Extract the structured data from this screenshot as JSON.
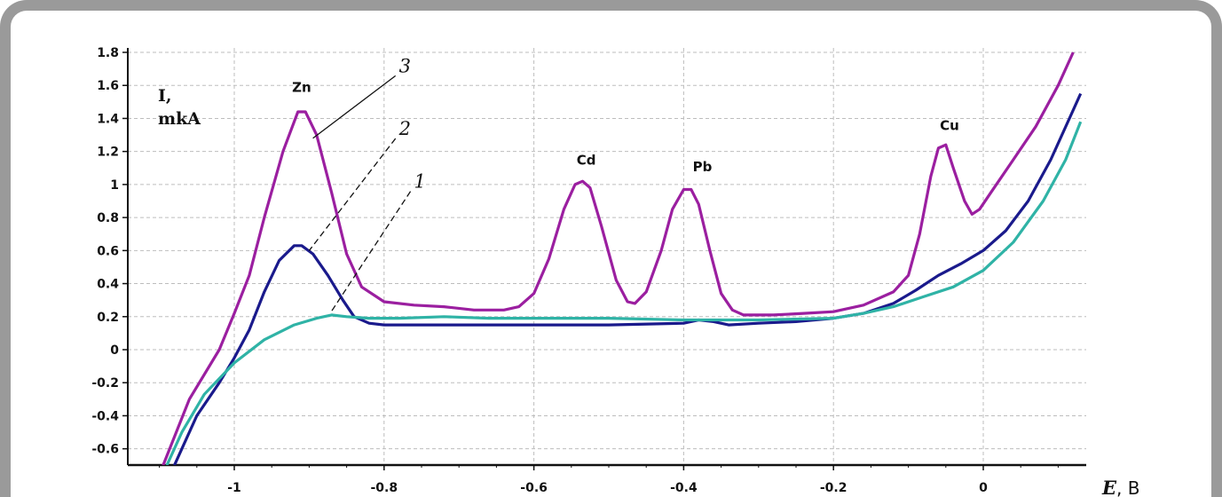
{
  "chart_data": {
    "type": "line",
    "ylabel_line1": "I,",
    "ylabel_line2": "mkA",
    "xlabel_symbol": "E",
    "xlabel_unit": ", B",
    "xlim": [
      -1.12,
      0.14
    ],
    "ylim": [
      -0.7,
      1.85
    ],
    "grid": true,
    "x_ticks": [
      {
        "v": -1.0,
        "label": "-1"
      },
      {
        "v": -0.8,
        "label": "-0.8"
      },
      {
        "v": -0.6,
        "label": "-0.6"
      },
      {
        "v": -0.4,
        "label": "-0.4"
      },
      {
        "v": -0.2,
        "label": "-0.2"
      },
      {
        "v": 0.0,
        "label": "0"
      }
    ],
    "y_ticks": [
      {
        "v": 1.8,
        "label": "1.8"
      },
      {
        "v": 1.6,
        "label": "1.6"
      },
      {
        "v": 1.4,
        "label": "1.4"
      },
      {
        "v": 1.2,
        "label": "1.2"
      },
      {
        "v": 1.0,
        "label": "1"
      },
      {
        "v": 0.8,
        "label": "0.8"
      },
      {
        "v": 0.6,
        "label": "0.6"
      },
      {
        "v": 0.4,
        "label": "0.4"
      },
      {
        "v": 0.2,
        "label": "0.2"
      },
      {
        "v": 0.0,
        "label": "0"
      },
      {
        "v": -0.2,
        "label": "-0.2"
      },
      {
        "v": -0.4,
        "label": "-0.4"
      },
      {
        "v": -0.6,
        "label": "-0.6"
      }
    ],
    "series": [
      {
        "id": "3",
        "color": "#9b1fa0",
        "points": [
          [
            -1.095,
            -0.7
          ],
          [
            -1.06,
            -0.3
          ],
          [
            -1.02,
            0.0
          ],
          [
            -1.0,
            0.22
          ],
          [
            -0.98,
            0.45
          ],
          [
            -0.96,
            0.8
          ],
          [
            -0.935,
            1.2
          ],
          [
            -0.915,
            1.44
          ],
          [
            -0.905,
            1.44
          ],
          [
            -0.89,
            1.3
          ],
          [
            -0.87,
            0.95
          ],
          [
            -0.85,
            0.58
          ],
          [
            -0.83,
            0.38
          ],
          [
            -0.8,
            0.29
          ],
          [
            -0.76,
            0.27
          ],
          [
            -0.72,
            0.26
          ],
          [
            -0.68,
            0.24
          ],
          [
            -0.64,
            0.24
          ],
          [
            -0.62,
            0.26
          ],
          [
            -0.6,
            0.34
          ],
          [
            -0.58,
            0.55
          ],
          [
            -0.56,
            0.85
          ],
          [
            -0.545,
            1.0
          ],
          [
            -0.535,
            1.02
          ],
          [
            -0.525,
            0.98
          ],
          [
            -0.51,
            0.75
          ],
          [
            -0.49,
            0.42
          ],
          [
            -0.475,
            0.29
          ],
          [
            -0.465,
            0.28
          ],
          [
            -0.45,
            0.35
          ],
          [
            -0.43,
            0.6
          ],
          [
            -0.415,
            0.85
          ],
          [
            -0.4,
            0.97
          ],
          [
            -0.39,
            0.97
          ],
          [
            -0.38,
            0.88
          ],
          [
            -0.365,
            0.6
          ],
          [
            -0.35,
            0.34
          ],
          [
            -0.335,
            0.24
          ],
          [
            -0.32,
            0.21
          ],
          [
            -0.28,
            0.21
          ],
          [
            -0.24,
            0.22
          ],
          [
            -0.2,
            0.23
          ],
          [
            -0.16,
            0.27
          ],
          [
            -0.12,
            0.35
          ],
          [
            -0.1,
            0.45
          ],
          [
            -0.085,
            0.7
          ],
          [
            -0.07,
            1.05
          ],
          [
            -0.06,
            1.22
          ],
          [
            -0.05,
            1.24
          ],
          [
            -0.04,
            1.1
          ],
          [
            -0.025,
            0.9
          ],
          [
            -0.015,
            0.82
          ],
          [
            -0.005,
            0.85
          ],
          [
            0.01,
            0.95
          ],
          [
            0.04,
            1.15
          ],
          [
            0.07,
            1.35
          ],
          [
            0.1,
            1.6
          ],
          [
            0.12,
            1.8
          ]
        ]
      },
      {
        "id": "2",
        "color": "#1a1a8c",
        "points": [
          [
            -1.08,
            -0.7
          ],
          [
            -1.05,
            -0.4
          ],
          [
            -1.02,
            -0.2
          ],
          [
            -1.0,
            -0.05
          ],
          [
            -0.98,
            0.12
          ],
          [
            -0.96,
            0.35
          ],
          [
            -0.94,
            0.54
          ],
          [
            -0.92,
            0.63
          ],
          [
            -0.91,
            0.63
          ],
          [
            -0.895,
            0.58
          ],
          [
            -0.875,
            0.45
          ],
          [
            -0.855,
            0.3
          ],
          [
            -0.84,
            0.2
          ],
          [
            -0.82,
            0.16
          ],
          [
            -0.8,
            0.15
          ],
          [
            -0.7,
            0.15
          ],
          [
            -0.6,
            0.15
          ],
          [
            -0.5,
            0.15
          ],
          [
            -0.4,
            0.16
          ],
          [
            -0.38,
            0.18
          ],
          [
            -0.36,
            0.17
          ],
          [
            -0.34,
            0.15
          ],
          [
            -0.3,
            0.16
          ],
          [
            -0.25,
            0.17
          ],
          [
            -0.2,
            0.19
          ],
          [
            -0.16,
            0.22
          ],
          [
            -0.12,
            0.28
          ],
          [
            -0.09,
            0.36
          ],
          [
            -0.06,
            0.45
          ],
          [
            -0.03,
            0.52
          ],
          [
            0.0,
            0.6
          ],
          [
            0.03,
            0.72
          ],
          [
            0.06,
            0.9
          ],
          [
            0.09,
            1.15
          ],
          [
            0.115,
            1.4
          ],
          [
            0.13,
            1.55
          ]
        ]
      },
      {
        "id": "1",
        "color": "#2fb3a6",
        "points": [
          [
            -1.09,
            -0.7
          ],
          [
            -1.07,
            -0.5
          ],
          [
            -1.04,
            -0.27
          ],
          [
            -1.0,
            -0.08
          ],
          [
            -0.96,
            0.06
          ],
          [
            -0.92,
            0.15
          ],
          [
            -0.89,
            0.19
          ],
          [
            -0.87,
            0.21
          ],
          [
            -0.85,
            0.2
          ],
          [
            -0.82,
            0.19
          ],
          [
            -0.78,
            0.19
          ],
          [
            -0.72,
            0.2
          ],
          [
            -0.66,
            0.19
          ],
          [
            -0.6,
            0.19
          ],
          [
            -0.5,
            0.19
          ],
          [
            -0.4,
            0.18
          ],
          [
            -0.3,
            0.18
          ],
          [
            -0.2,
            0.19
          ],
          [
            -0.16,
            0.22
          ],
          [
            -0.12,
            0.26
          ],
          [
            -0.08,
            0.32
          ],
          [
            -0.04,
            0.38
          ],
          [
            0.0,
            0.48
          ],
          [
            0.04,
            0.65
          ],
          [
            0.08,
            0.9
          ],
          [
            0.11,
            1.15
          ],
          [
            0.13,
            1.38
          ]
        ]
      }
    ],
    "annotations": [
      {
        "text": "Zn",
        "x": -0.91,
        "y": 1.56
      },
      {
        "text": "Cd",
        "x": -0.53,
        "y": 1.12
      },
      {
        "text": "Pb",
        "x": -0.375,
        "y": 1.08
      },
      {
        "text": "Cu",
        "x": -0.045,
        "y": 1.33
      }
    ],
    "curve_numbers": [
      {
        "text": "3",
        "x": -0.78,
        "y": 1.68,
        "to_x": -0.895,
        "to_y": 1.28,
        "dashed": false
      },
      {
        "text": "2",
        "x": -0.78,
        "y": 1.3,
        "to_x": -0.9,
        "to_y": 0.6,
        "dashed": true
      },
      {
        "text": "1",
        "x": -0.76,
        "y": 0.98,
        "to_x": -0.872,
        "to_y": 0.22,
        "dashed": true
      }
    ]
  }
}
